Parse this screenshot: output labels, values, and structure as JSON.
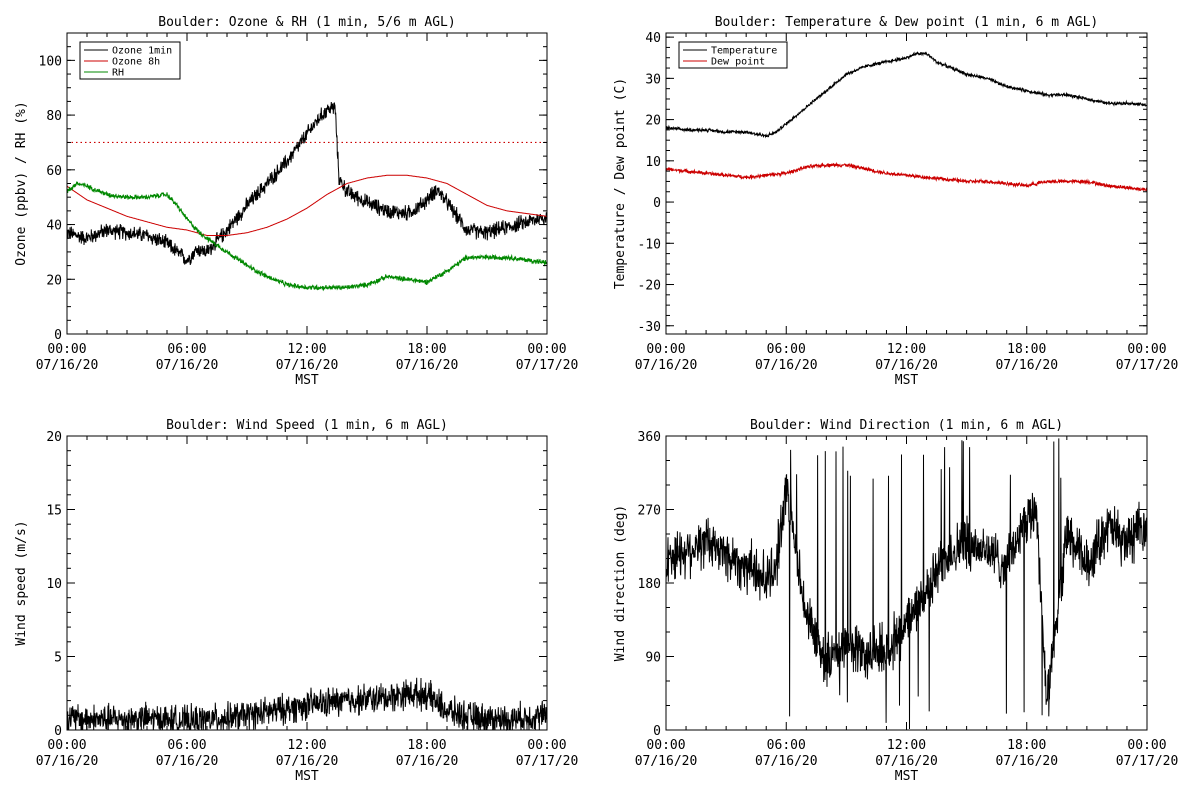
{
  "chart_data": [
    {
      "id": "ozone",
      "type": "line",
      "title": "Boulder: Ozone & RH (1 min, 5/6 m AGL)",
      "xlabel": "MST",
      "ylabel": "Ozone (ppbv) / RH (%)",
      "xlim": [
        0,
        24
      ],
      "ylim": [
        0,
        110
      ],
      "yticks": [
        0,
        20,
        40,
        60,
        80,
        100
      ],
      "xticks": [
        {
          "v": 0,
          "time": "00:00",
          "date": "07/16/20"
        },
        {
          "v": 6,
          "time": "06:00",
          "date": "07/16/20"
        },
        {
          "v": 12,
          "time": "12:00",
          "date": "07/16/20"
        },
        {
          "v": 18,
          "time": "18:00",
          "date": "07/16/20"
        },
        {
          "v": 24,
          "time": "00:00",
          "date": "07/17/20"
        }
      ],
      "reference_line": {
        "y": 70,
        "color": "#cc0000",
        "style": "dotted"
      },
      "legend": {
        "position": "top-left"
      },
      "series": [
        {
          "name": "Ozone 1min",
          "color": "#000000",
          "noise": 2.5,
          "spike": "none",
          "x": [
            0,
            1,
            2,
            3,
            4,
            5,
            5.5,
            6,
            6.5,
            7,
            7.5,
            8,
            9,
            10,
            11,
            12,
            12.5,
            13,
            13.4,
            13.6,
            14,
            15,
            16,
            17,
            17.5,
            18,
            18.5,
            19,
            20,
            21,
            22,
            23,
            24
          ],
          "y": [
            37,
            35,
            38,
            37,
            36,
            33,
            30,
            27,
            31,
            30,
            34,
            38,
            47,
            55,
            63,
            73,
            78,
            82,
            83,
            57,
            52,
            48,
            45,
            44,
            46,
            49,
            53,
            48,
            38,
            37,
            39,
            41,
            43
          ]
        },
        {
          "name": "Ozone 8h",
          "color": "#cc0000",
          "noise": 0,
          "spike": "none",
          "x": [
            0,
            1,
            2,
            3,
            4,
            5,
            6,
            7,
            8,
            9,
            10,
            11,
            12,
            13,
            14,
            15,
            16,
            17,
            18,
            19,
            20,
            21,
            22,
            23,
            24
          ],
          "y": [
            54,
            49,
            46,
            43,
            41,
            39,
            38,
            36,
            36,
            37,
            39,
            42,
            46,
            51,
            55,
            57,
            58,
            58,
            57,
            55,
            51,
            47,
            45,
            44,
            43
          ]
        },
        {
          "name": "RH",
          "color": "#008800",
          "noise": 0.8,
          "spike": "none",
          "x": [
            0,
            0.5,
            1,
            2,
            3,
            4,
            5,
            5.5,
            6,
            6.5,
            7,
            8,
            9,
            10,
            11,
            12,
            13,
            14,
            15,
            16,
            17,
            18,
            19,
            20,
            21,
            22,
            23,
            24
          ],
          "y": [
            52,
            55,
            54,
            51,
            50,
            50,
            51,
            47,
            42,
            38,
            35,
            30,
            25,
            21,
            18,
            17,
            17,
            17,
            18,
            21,
            20,
            19,
            23,
            28,
            28,
            28,
            27,
            26
          ]
        }
      ]
    },
    {
      "id": "temp",
      "type": "line",
      "title": "Boulder: Temperature & Dew point (1 min, 6 m AGL)",
      "xlabel": "MST",
      "ylabel": "Temperature / Dew point (C)",
      "xlim": [
        0,
        24
      ],
      "ylim": [
        -32,
        41
      ],
      "yticks": [
        -30,
        -20,
        -10,
        0,
        10,
        20,
        30,
        40
      ],
      "xticks": [
        {
          "v": 0,
          "time": "00:00",
          "date": "07/16/20"
        },
        {
          "v": 6,
          "time": "06:00",
          "date": "07/16/20"
        },
        {
          "v": 12,
          "time": "12:00",
          "date": "07/16/20"
        },
        {
          "v": 18,
          "time": "18:00",
          "date": "07/16/20"
        },
        {
          "v": 24,
          "time": "00:00",
          "date": "07/17/20"
        }
      ],
      "legend": {
        "position": "top-left"
      },
      "series": [
        {
          "name": "Temperature",
          "color": "#000000",
          "noise": 0.35,
          "spike": "none",
          "x": [
            0,
            1,
            2,
            3,
            4,
            5,
            5.5,
            6,
            6.5,
            7,
            7.5,
            8,
            8.5,
            9,
            10,
            11,
            12,
            12.5,
            13,
            13.5,
            14,
            15,
            16,
            17,
            18,
            19,
            20,
            21,
            22,
            23,
            24
          ],
          "y": [
            18,
            17.5,
            17.5,
            17,
            17,
            16,
            17,
            19,
            21,
            23,
            25,
            27,
            29,
            31,
            33,
            34,
            35,
            36,
            36,
            34,
            33,
            31,
            30,
            28,
            27,
            26,
            26,
            25,
            24,
            24,
            23.5
          ]
        },
        {
          "name": "Dew point",
          "color": "#cc0000",
          "noise": 0.4,
          "spike": "none",
          "x": [
            0,
            1,
            2,
            3,
            4,
            5,
            6,
            7,
            8,
            9,
            10,
            11,
            12,
            13,
            14,
            15,
            16,
            17,
            18,
            19,
            20,
            21,
            22,
            23,
            24
          ],
          "y": [
            8,
            7.5,
            7,
            6.5,
            6,
            6.5,
            7,
            8.5,
            9,
            9,
            8,
            7,
            6.5,
            6,
            5.5,
            5,
            5,
            4.5,
            4,
            5,
            5,
            5,
            4,
            3.5,
            3
          ]
        }
      ]
    },
    {
      "id": "wind",
      "type": "line",
      "title": "Boulder: Wind Speed (1 min, 6 m AGL)",
      "xlabel": "MST",
      "ylabel": "Wind speed (m/s)",
      "xlim": [
        0,
        24
      ],
      "ylim": [
        0,
        20
      ],
      "yticks": [
        0,
        5,
        10,
        15,
        20
      ],
      "xticks": [
        {
          "v": 0,
          "time": "00:00",
          "date": "07/16/20"
        },
        {
          "v": 6,
          "time": "06:00",
          "date": "07/16/20"
        },
        {
          "v": 12,
          "time": "12:00",
          "date": "07/16/20"
        },
        {
          "v": 18,
          "time": "18:00",
          "date": "07/16/20"
        },
        {
          "v": 24,
          "time": "00:00",
          "date": "07/17/20"
        }
      ],
      "series": [
        {
          "name": "",
          "color": "#000000",
          "noise": 0.9,
          "spike": "none",
          "floor": 0,
          "x": [
            0,
            2,
            4,
            6,
            8,
            10,
            12,
            14,
            16,
            17,
            18,
            19,
            20,
            22,
            24
          ],
          "y": [
            0.8,
            0.7,
            0.8,
            0.6,
            0.8,
            1.2,
            1.7,
            2.0,
            2.2,
            2.5,
            2.4,
            1.3,
            0.9,
            0.7,
            1.0
          ]
        }
      ]
    },
    {
      "id": "wdir",
      "type": "line",
      "title": "Boulder: Wind Direction (1 min, 6 m AGL)",
      "xlabel": "MST",
      "ylabel": "Wind direction (deg)",
      "xlim": [
        0,
        24
      ],
      "ylim": [
        0,
        360
      ],
      "yticks": [
        0,
        90,
        180,
        270,
        360
      ],
      "xticks": [
        {
          "v": 0,
          "time": "00:00",
          "date": "07/16/20"
        },
        {
          "v": 6,
          "time": "06:00",
          "date": "07/16/20"
        },
        {
          "v": 12,
          "time": "12:00",
          "date": "07/16/20"
        },
        {
          "v": 18,
          "time": "18:00",
          "date": "07/16/20"
        },
        {
          "v": 24,
          "time": "00:00",
          "date": "07/17/20"
        }
      ],
      "series": [
        {
          "name": "",
          "color": "#000000",
          "noise": 28,
          "spike": "wrap",
          "floor": 0,
          "ceil": 360,
          "x": [
            0,
            1,
            2,
            3,
            4,
            5,
            5.5,
            6,
            7,
            8,
            9,
            10,
            11,
            12,
            13,
            14,
            15,
            16,
            17,
            18,
            18.5,
            19,
            20,
            21,
            22,
            23,
            24
          ],
          "y": [
            210,
            220,
            230,
            215,
            200,
            185,
            200,
            300,
            140,
            80,
            110,
            90,
            100,
            130,
            170,
            215,
            230,
            220,
            200,
            260,
            270,
            30,
            240,
            200,
            250,
            230,
            250
          ]
        }
      ]
    }
  ]
}
